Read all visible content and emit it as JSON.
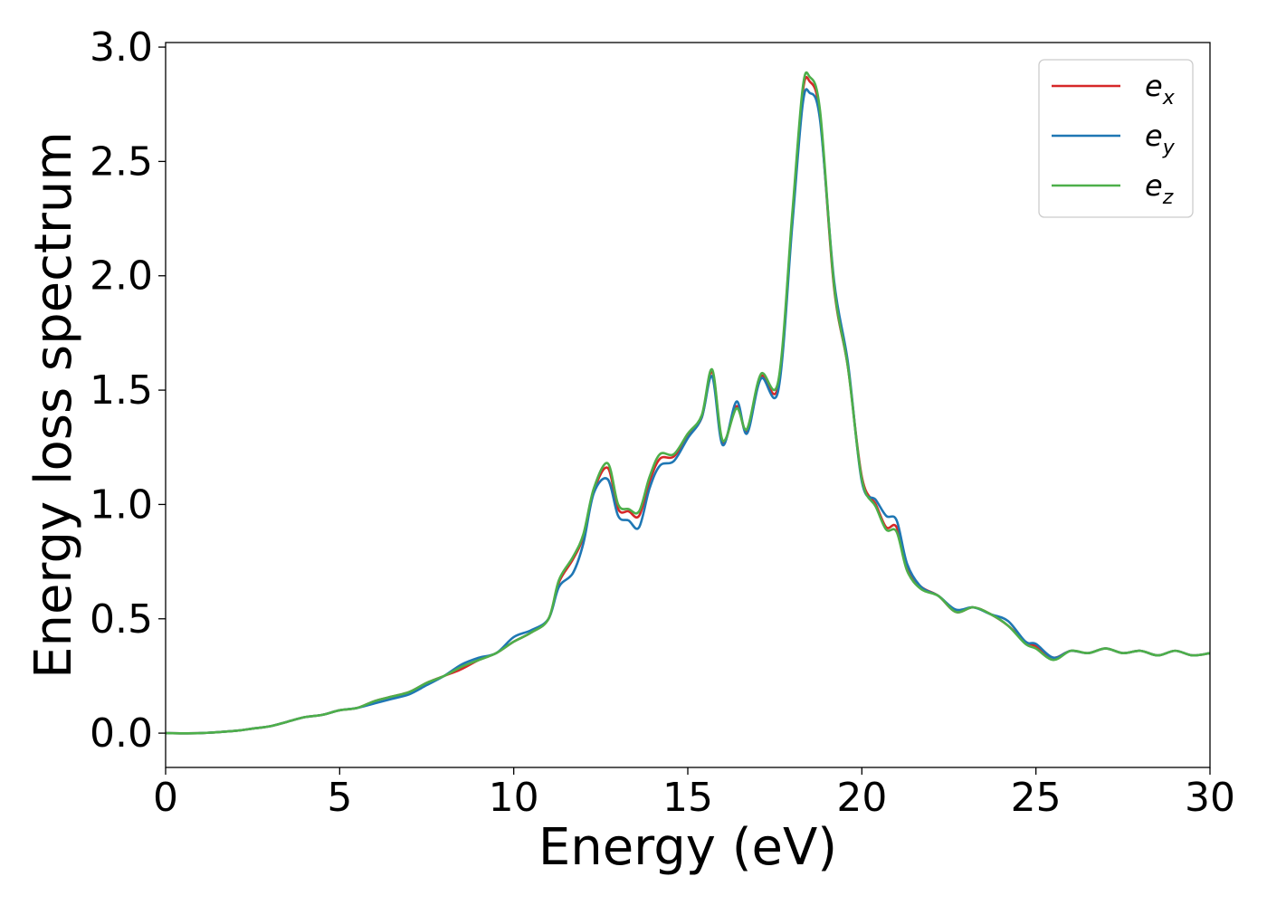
{
  "chart_data": {
    "type": "line",
    "title": "",
    "xlabel": "Energy (eV)",
    "ylabel": "Energy loss spectrum",
    "xlim": [
      0,
      30
    ],
    "ylim": [
      -0.15,
      3.02
    ],
    "xticks": [
      0,
      5,
      10,
      15,
      20,
      25,
      30
    ],
    "xtick_labels": [
      "0",
      "5",
      "10",
      "15",
      "20",
      "25",
      "30"
    ],
    "yticks": [
      0.0,
      0.5,
      1.0,
      1.5,
      2.0,
      2.5,
      3.0
    ],
    "ytick_labels": [
      "0.0",
      "0.5",
      "1.0",
      "1.5",
      "2.0",
      "2.5",
      "3.0"
    ],
    "grid": false,
    "legend_position": "top-right",
    "series": [
      {
        "name": "e_x",
        "legend_base": "e",
        "legend_sub": "x",
        "color": "#d62728",
        "x": [
          0,
          1,
          2,
          2.5,
          3,
          3.5,
          4,
          4.5,
          5,
          5.5,
          6,
          6.5,
          7,
          7.5,
          8,
          8.5,
          9,
          9.5,
          10,
          10.5,
          11,
          11.3,
          11.7,
          12,
          12.3,
          12.7,
          13,
          13.3,
          13.6,
          13.9,
          14.2,
          14.6,
          15,
          15.4,
          15.7,
          16.0,
          16.4,
          16.7,
          17.1,
          17.6,
          18.0,
          18.3,
          18.5,
          18.8,
          19.2,
          19.6,
          20.0,
          20.4,
          20.7,
          21.0,
          21.3,
          21.7,
          22.2,
          22.7,
          23.2,
          23.7,
          24.2,
          24.7,
          25.0,
          25.5,
          26.0,
          26.5,
          27.0,
          27.5,
          28.0,
          28.5,
          29.0,
          29.5,
          30
        ],
        "y": [
          0,
          0,
          0.01,
          0.02,
          0.03,
          0.05,
          0.07,
          0.08,
          0.1,
          0.11,
          0.14,
          0.16,
          0.18,
          0.22,
          0.25,
          0.28,
          0.32,
          0.35,
          0.4,
          0.44,
          0.5,
          0.66,
          0.76,
          0.86,
          1.06,
          1.16,
          0.98,
          0.97,
          0.95,
          1.1,
          1.2,
          1.21,
          1.3,
          1.38,
          1.58,
          1.27,
          1.43,
          1.32,
          1.56,
          1.52,
          2.25,
          2.8,
          2.85,
          2.7,
          1.95,
          1.6,
          1.12,
          1.0,
          0.9,
          0.9,
          0.72,
          0.64,
          0.6,
          0.53,
          0.55,
          0.52,
          0.47,
          0.4,
          0.38,
          0.33,
          0.36,
          0.35,
          0.37,
          0.35,
          0.36,
          0.34,
          0.36,
          0.34,
          0.35
        ]
      },
      {
        "name": "e_y",
        "legend_base": "e",
        "legend_sub": "y",
        "color": "#1f77b4",
        "x": [
          0,
          1,
          2,
          2.5,
          3,
          3.5,
          4,
          4.5,
          5,
          5.5,
          6,
          6.5,
          7,
          7.5,
          8,
          8.5,
          9,
          9.5,
          10,
          10.5,
          11,
          11.3,
          11.7,
          12,
          12.3,
          12.7,
          13,
          13.3,
          13.6,
          13.9,
          14.2,
          14.6,
          15,
          15.4,
          15.7,
          16.0,
          16.4,
          16.7,
          17.1,
          17.6,
          18.0,
          18.3,
          18.5,
          18.8,
          19.2,
          19.6,
          20.0,
          20.4,
          20.7,
          21.0,
          21.3,
          21.7,
          22.2,
          22.7,
          23.2,
          23.7,
          24.2,
          24.7,
          25.0,
          25.5,
          26.0,
          26.5,
          27.0,
          27.5,
          28.0,
          28.5,
          29.0,
          29.5,
          30
        ],
        "y": [
          0,
          0,
          0.01,
          0.02,
          0.03,
          0.05,
          0.07,
          0.08,
          0.1,
          0.11,
          0.13,
          0.15,
          0.17,
          0.21,
          0.25,
          0.3,
          0.33,
          0.35,
          0.42,
          0.45,
          0.5,
          0.64,
          0.7,
          0.83,
          1.05,
          1.11,
          0.95,
          0.93,
          0.9,
          1.07,
          1.17,
          1.19,
          1.29,
          1.38,
          1.56,
          1.26,
          1.45,
          1.31,
          1.55,
          1.5,
          2.22,
          2.75,
          2.8,
          2.68,
          1.98,
          1.62,
          1.1,
          1.02,
          0.95,
          0.93,
          0.74,
          0.64,
          0.6,
          0.54,
          0.55,
          0.52,
          0.49,
          0.4,
          0.39,
          0.33,
          0.36,
          0.35,
          0.37,
          0.35,
          0.36,
          0.34,
          0.36,
          0.34,
          0.35
        ]
      },
      {
        "name": "e_z",
        "legend_base": "e",
        "legend_sub": "z",
        "color": "#4daf4a",
        "x": [
          0,
          1,
          2,
          2.5,
          3,
          3.5,
          4,
          4.5,
          5,
          5.5,
          6,
          6.5,
          7,
          7.5,
          8,
          8.5,
          9,
          9.5,
          10,
          10.5,
          11,
          11.3,
          11.7,
          12,
          12.3,
          12.7,
          13,
          13.3,
          13.6,
          13.9,
          14.2,
          14.6,
          15,
          15.4,
          15.7,
          16.0,
          16.4,
          16.7,
          17.1,
          17.6,
          18.0,
          18.3,
          18.5,
          18.8,
          19.2,
          19.6,
          20.0,
          20.4,
          20.7,
          21.0,
          21.3,
          21.7,
          22.2,
          22.7,
          23.2,
          23.7,
          24.2,
          24.7,
          25.0,
          25.5,
          26.0,
          26.5,
          27.0,
          27.5,
          28.0,
          28.5,
          29.0,
          29.5,
          30
        ],
        "y": [
          0,
          0,
          0.01,
          0.02,
          0.03,
          0.05,
          0.07,
          0.08,
          0.1,
          0.11,
          0.14,
          0.16,
          0.18,
          0.22,
          0.25,
          0.29,
          0.32,
          0.35,
          0.4,
          0.44,
          0.5,
          0.67,
          0.77,
          0.87,
          1.07,
          1.18,
          1.0,
          0.98,
          0.97,
          1.12,
          1.22,
          1.22,
          1.31,
          1.39,
          1.59,
          1.28,
          1.42,
          1.33,
          1.57,
          1.54,
          2.27,
          2.82,
          2.87,
          2.72,
          1.96,
          1.6,
          1.11,
          0.99,
          0.89,
          0.88,
          0.71,
          0.63,
          0.6,
          0.53,
          0.55,
          0.52,
          0.47,
          0.39,
          0.37,
          0.32,
          0.36,
          0.35,
          0.37,
          0.35,
          0.36,
          0.34,
          0.36,
          0.34,
          0.35
        ]
      }
    ]
  }
}
